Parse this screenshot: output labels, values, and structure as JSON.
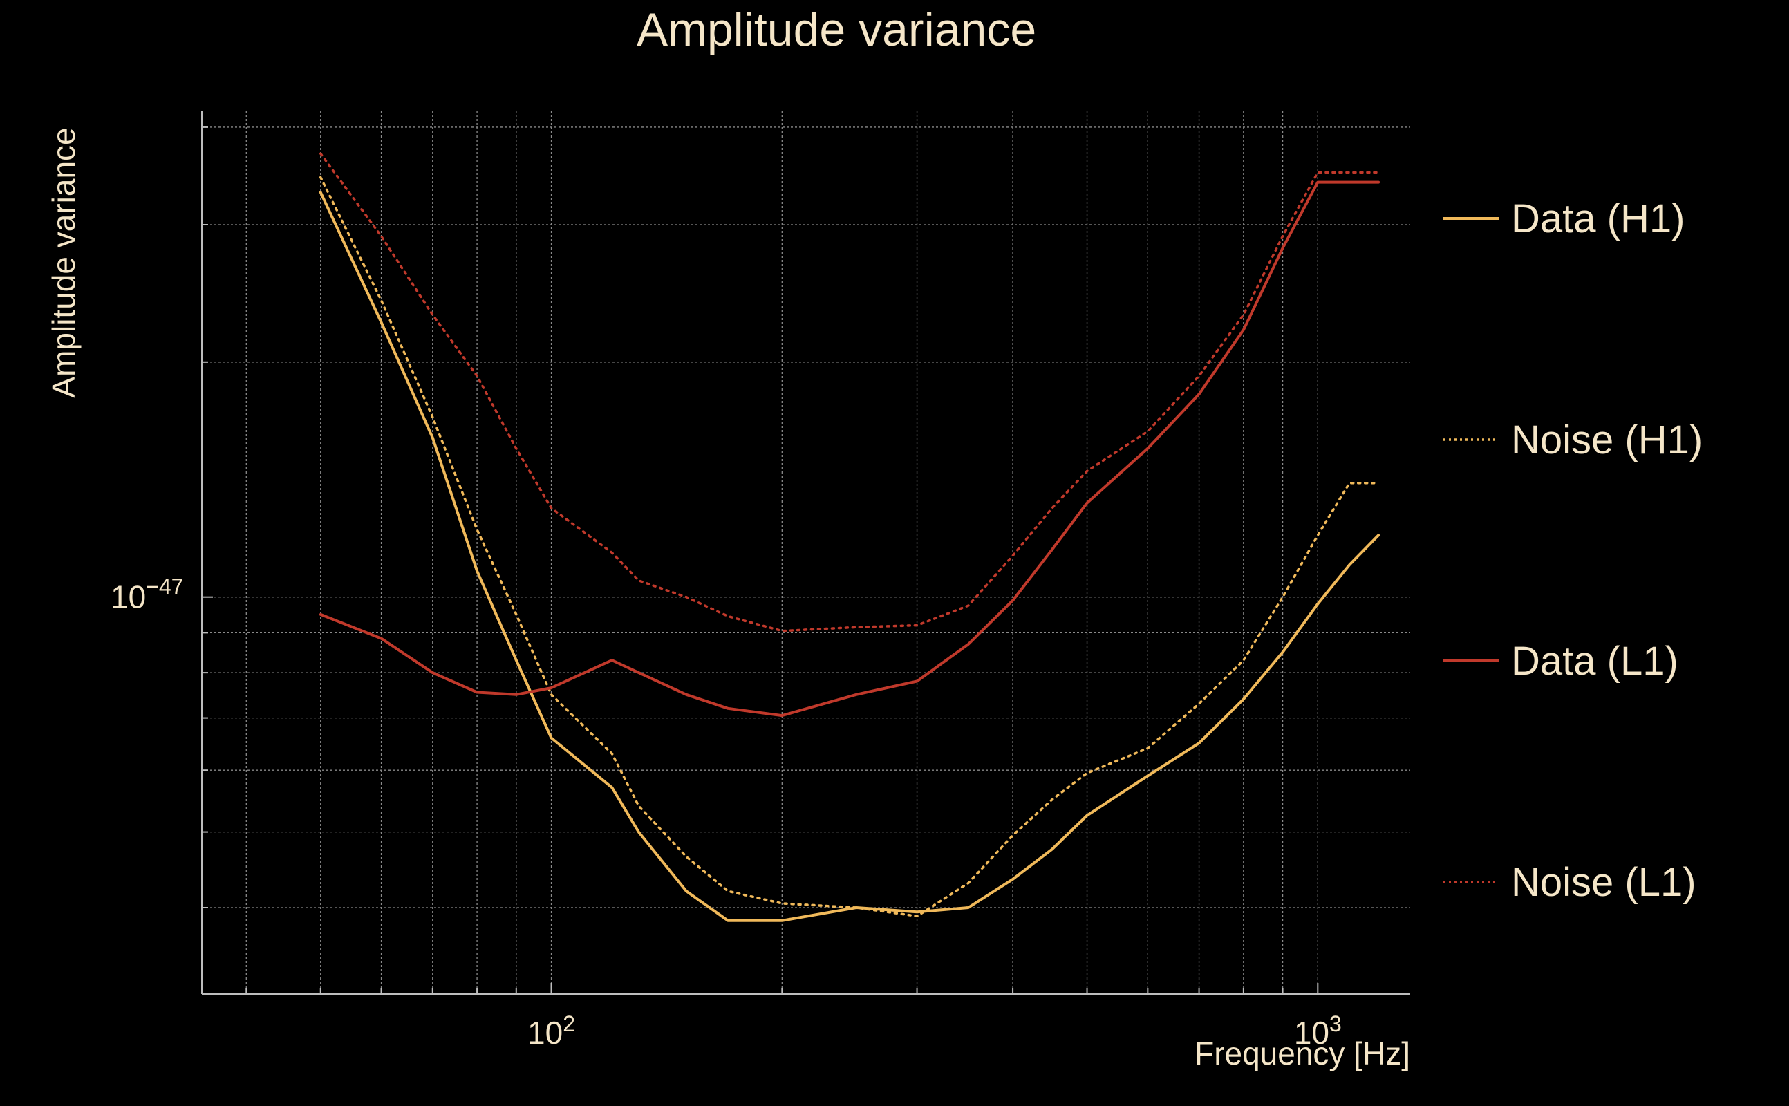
{
  "chart_data": {
    "type": "line",
    "title": "Amplitude variance",
    "xlabel": "Frequency [Hz]",
    "ylabel": "Amplitude variance",
    "x_scale": "log",
    "y_scale": "log",
    "xlim": [
      35,
      1320
    ],
    "ylim": [
      3.1e-48,
      4.2e-47
    ],
    "x_ticks": [
      {
        "value": 100,
        "label": "10",
        "exp": "2"
      },
      {
        "value": 1000,
        "label": "10",
        "exp": "3"
      }
    ],
    "y_ticks": [
      {
        "value": 1e-47,
        "label": "10",
        "exp": "−47"
      }
    ],
    "grid": true,
    "legend_position": "right",
    "x": [
      50,
      60,
      70,
      80,
      90,
      100,
      120,
      130,
      150,
      170,
      200,
      250,
      300,
      350,
      400,
      450,
      500,
      600,
      700,
      800,
      900,
      1000,
      1100,
      1200
    ],
    "series": [
      {
        "name": "Data (H1)",
        "color": "#f0b95a",
        "style": "solid",
        "values": [
          3.3e-47,
          2.25e-47,
          1.6e-47,
          1.08e-47,
          8.3e-48,
          6.6e-48,
          5.7e-48,
          5e-48,
          4.2e-48,
          3.85e-48,
          3.85e-48,
          4e-48,
          3.95e-48,
          4e-48,
          4.35e-48,
          4.75e-48,
          5.25e-48,
          5.9e-48,
          6.5e-48,
          7.4e-48,
          8.5e-48,
          9.8e-48,
          1.1e-47,
          1.2e-47
        ]
      },
      {
        "name": "Noise (H1)",
        "color": "#f0b95a",
        "style": "dotted",
        "values": [
          3.45e-47,
          2.4e-47,
          1.7e-47,
          1.22e-47,
          9.5e-48,
          7.5e-48,
          6.3e-48,
          5.4e-48,
          4.65e-48,
          4.2e-48,
          4.05e-48,
          4e-48,
          3.9e-48,
          4.3e-48,
          4.95e-48,
          5.5e-48,
          5.95e-48,
          6.4e-48,
          7.3e-48,
          8.3e-48,
          1e-47,
          1.2e-47,
          1.4e-47,
          1.4e-47
        ]
      },
      {
        "name": "Data (L1)",
        "color": "#c0392b",
        "style": "solid",
        "values": [
          9.5e-48,
          8.85e-48,
          8e-48,
          7.55e-48,
          7.5e-48,
          7.65e-48,
          8.3e-48,
          8e-48,
          7.5e-48,
          7.2e-48,
          7.05e-48,
          7.5e-48,
          7.8e-48,
          8.7e-48,
          9.9e-48,
          1.15e-47,
          1.32e-47,
          1.55e-47,
          1.82e-47,
          2.2e-47,
          2.8e-47,
          3.4e-47,
          3.4e-47,
          3.4e-47
        ]
      },
      {
        "name": "Noise (L1)",
        "color": "#c0392b",
        "style": "dotted",
        "values": [
          3.7e-47,
          2.9e-47,
          2.3e-47,
          1.92e-47,
          1.55e-47,
          1.3e-47,
          1.14e-47,
          1.05e-47,
          1e-47,
          9.45e-48,
          9.05e-48,
          9.15e-48,
          9.2e-48,
          9.75e-48,
          1.13e-47,
          1.3e-47,
          1.45e-47,
          1.63e-47,
          1.92e-47,
          2.3e-47,
          2.9e-47,
          3.5e-47,
          3.5e-47,
          3.5e-47
        ]
      }
    ]
  }
}
